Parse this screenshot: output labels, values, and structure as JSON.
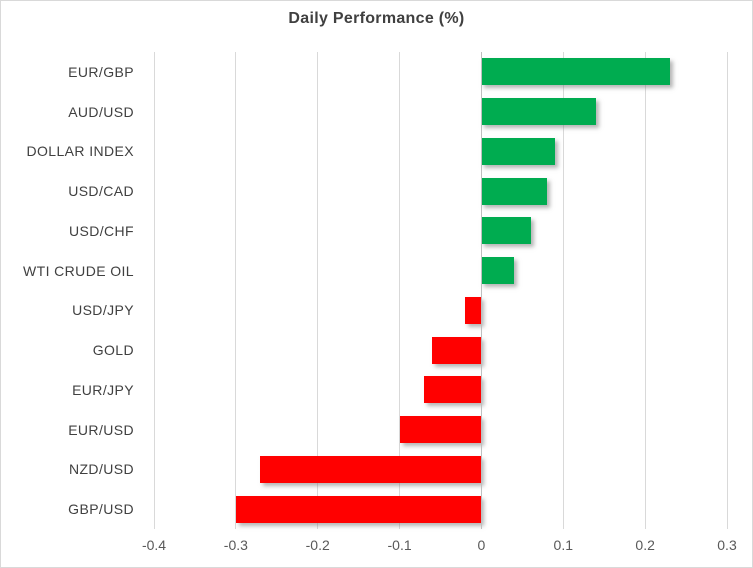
{
  "chart_data": {
    "type": "bar",
    "orientation": "horizontal",
    "title": "Daily Performance (%)",
    "categories": [
      "EUR/GBP",
      "AUD/USD",
      "DOLLAR INDEX",
      "USD/CAD",
      "USD/CHF",
      "WTI CRUDE OIL",
      "USD/JPY",
      "GOLD",
      "EUR/JPY",
      "EUR/USD",
      "NZD/USD",
      "GBP/USD"
    ],
    "values": [
      0.23,
      0.14,
      0.09,
      0.08,
      0.06,
      0.04,
      -0.02,
      -0.06,
      -0.07,
      -0.1,
      -0.27,
      -0.3
    ],
    "xlabel": "",
    "ylabel": "",
    "xlim": [
      -0.4,
      0.3
    ],
    "xticks": [
      -0.4,
      -0.3,
      -0.2,
      -0.1,
      0,
      0.1,
      0.2,
      0.3
    ],
    "xtick_labels": [
      "-0.4",
      "-0.3",
      "-0.2",
      "-0.1",
      "0",
      "0.1",
      "0.2",
      "0.3"
    ],
    "grid": "vertical",
    "legend": "none",
    "colors": {
      "positive": "#00ac50",
      "negative": "#ff0000",
      "gridline": "#d9d9d9",
      "zero_axis": "#bfbfbf",
      "title": "#404040",
      "category_label": "#404040",
      "tick_label": "#595959",
      "border": "#d9d9d9",
      "background": "#ffffff"
    }
  }
}
